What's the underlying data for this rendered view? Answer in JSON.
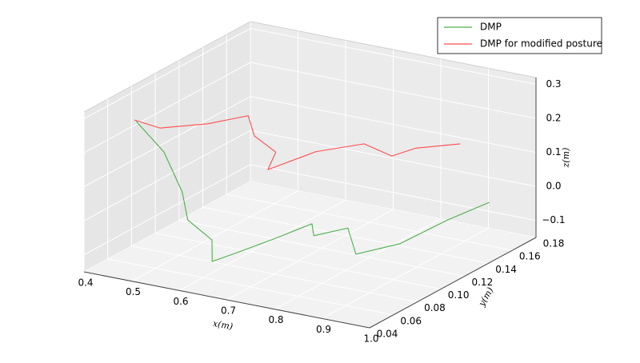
{
  "chart_data": {
    "type": "line3d",
    "x_label": "x(m)",
    "y_label": "y(m)",
    "z_label": "z(m)",
    "xlim": [
      0.4,
      1.0
    ],
    "ylim": [
      0.04,
      0.18
    ],
    "zlim": [
      -0.15,
      0.32
    ],
    "xticks": [
      0.4,
      0.5,
      0.6,
      0.7,
      0.8,
      0.9,
      {
        "value": 1.0,
        "label": "1.0"
      }
    ],
    "yticks": [
      0.04,
      0.06,
      0.08,
      {
        "value": 0.1,
        "label": "0.10"
      },
      0.12,
      0.14,
      0.16,
      0.18
    ],
    "zticks": [
      {
        "value": -0.1,
        "label": "−0.1"
      },
      {
        "value": 0.0,
        "label": "0.0"
      },
      0.1,
      0.2,
      0.3
    ],
    "grid": true,
    "legend_position": "upper right",
    "series": [
      {
        "name": "DMP",
        "color": "#4daf4a",
        "x": [
          0.44,
          0.498,
          0.519,
          0.513,
          0.564,
          0.582,
          0.606,
          0.672,
          0.739,
          0.743,
          0.797,
          0.814,
          0.889,
          0.955,
          1.007
        ],
        "y": [
          0.068,
          0.068,
          0.075,
          0.082,
          0.082,
          0.075,
          0.082,
          0.089,
          0.096,
          0.096,
          0.103,
          0.103,
          0.11,
          0.124,
          0.138
        ],
        "z": [
          0.25,
          0.176,
          0.051,
          -0.046,
          -0.091,
          -0.136,
          -0.122,
          -0.074,
          -0.022,
          -0.056,
          -0.032,
          -0.104,
          -0.066,
          -0.004,
          0.035
        ]
      },
      {
        "name": "DMP for modified posture",
        "color": "#ff4d4d",
        "x": [
          0.436,
          0.472,
          0.555,
          0.64,
          0.653,
          0.698,
          0.664,
          0.747,
          0.831,
          0.872,
          0.905,
          0.963
        ],
        "y": [
          0.068,
          0.075,
          0.082,
          0.082,
          0.082,
          0.082,
          0.089,
          0.096,
          0.103,
          0.11,
          0.117,
          0.131
        ],
        "z": [
          0.253,
          0.226,
          0.248,
          0.295,
          0.239,
          0.204,
          0.13,
          0.192,
          0.225,
          0.187,
          0.206,
          0.208
        ]
      }
    ]
  }
}
